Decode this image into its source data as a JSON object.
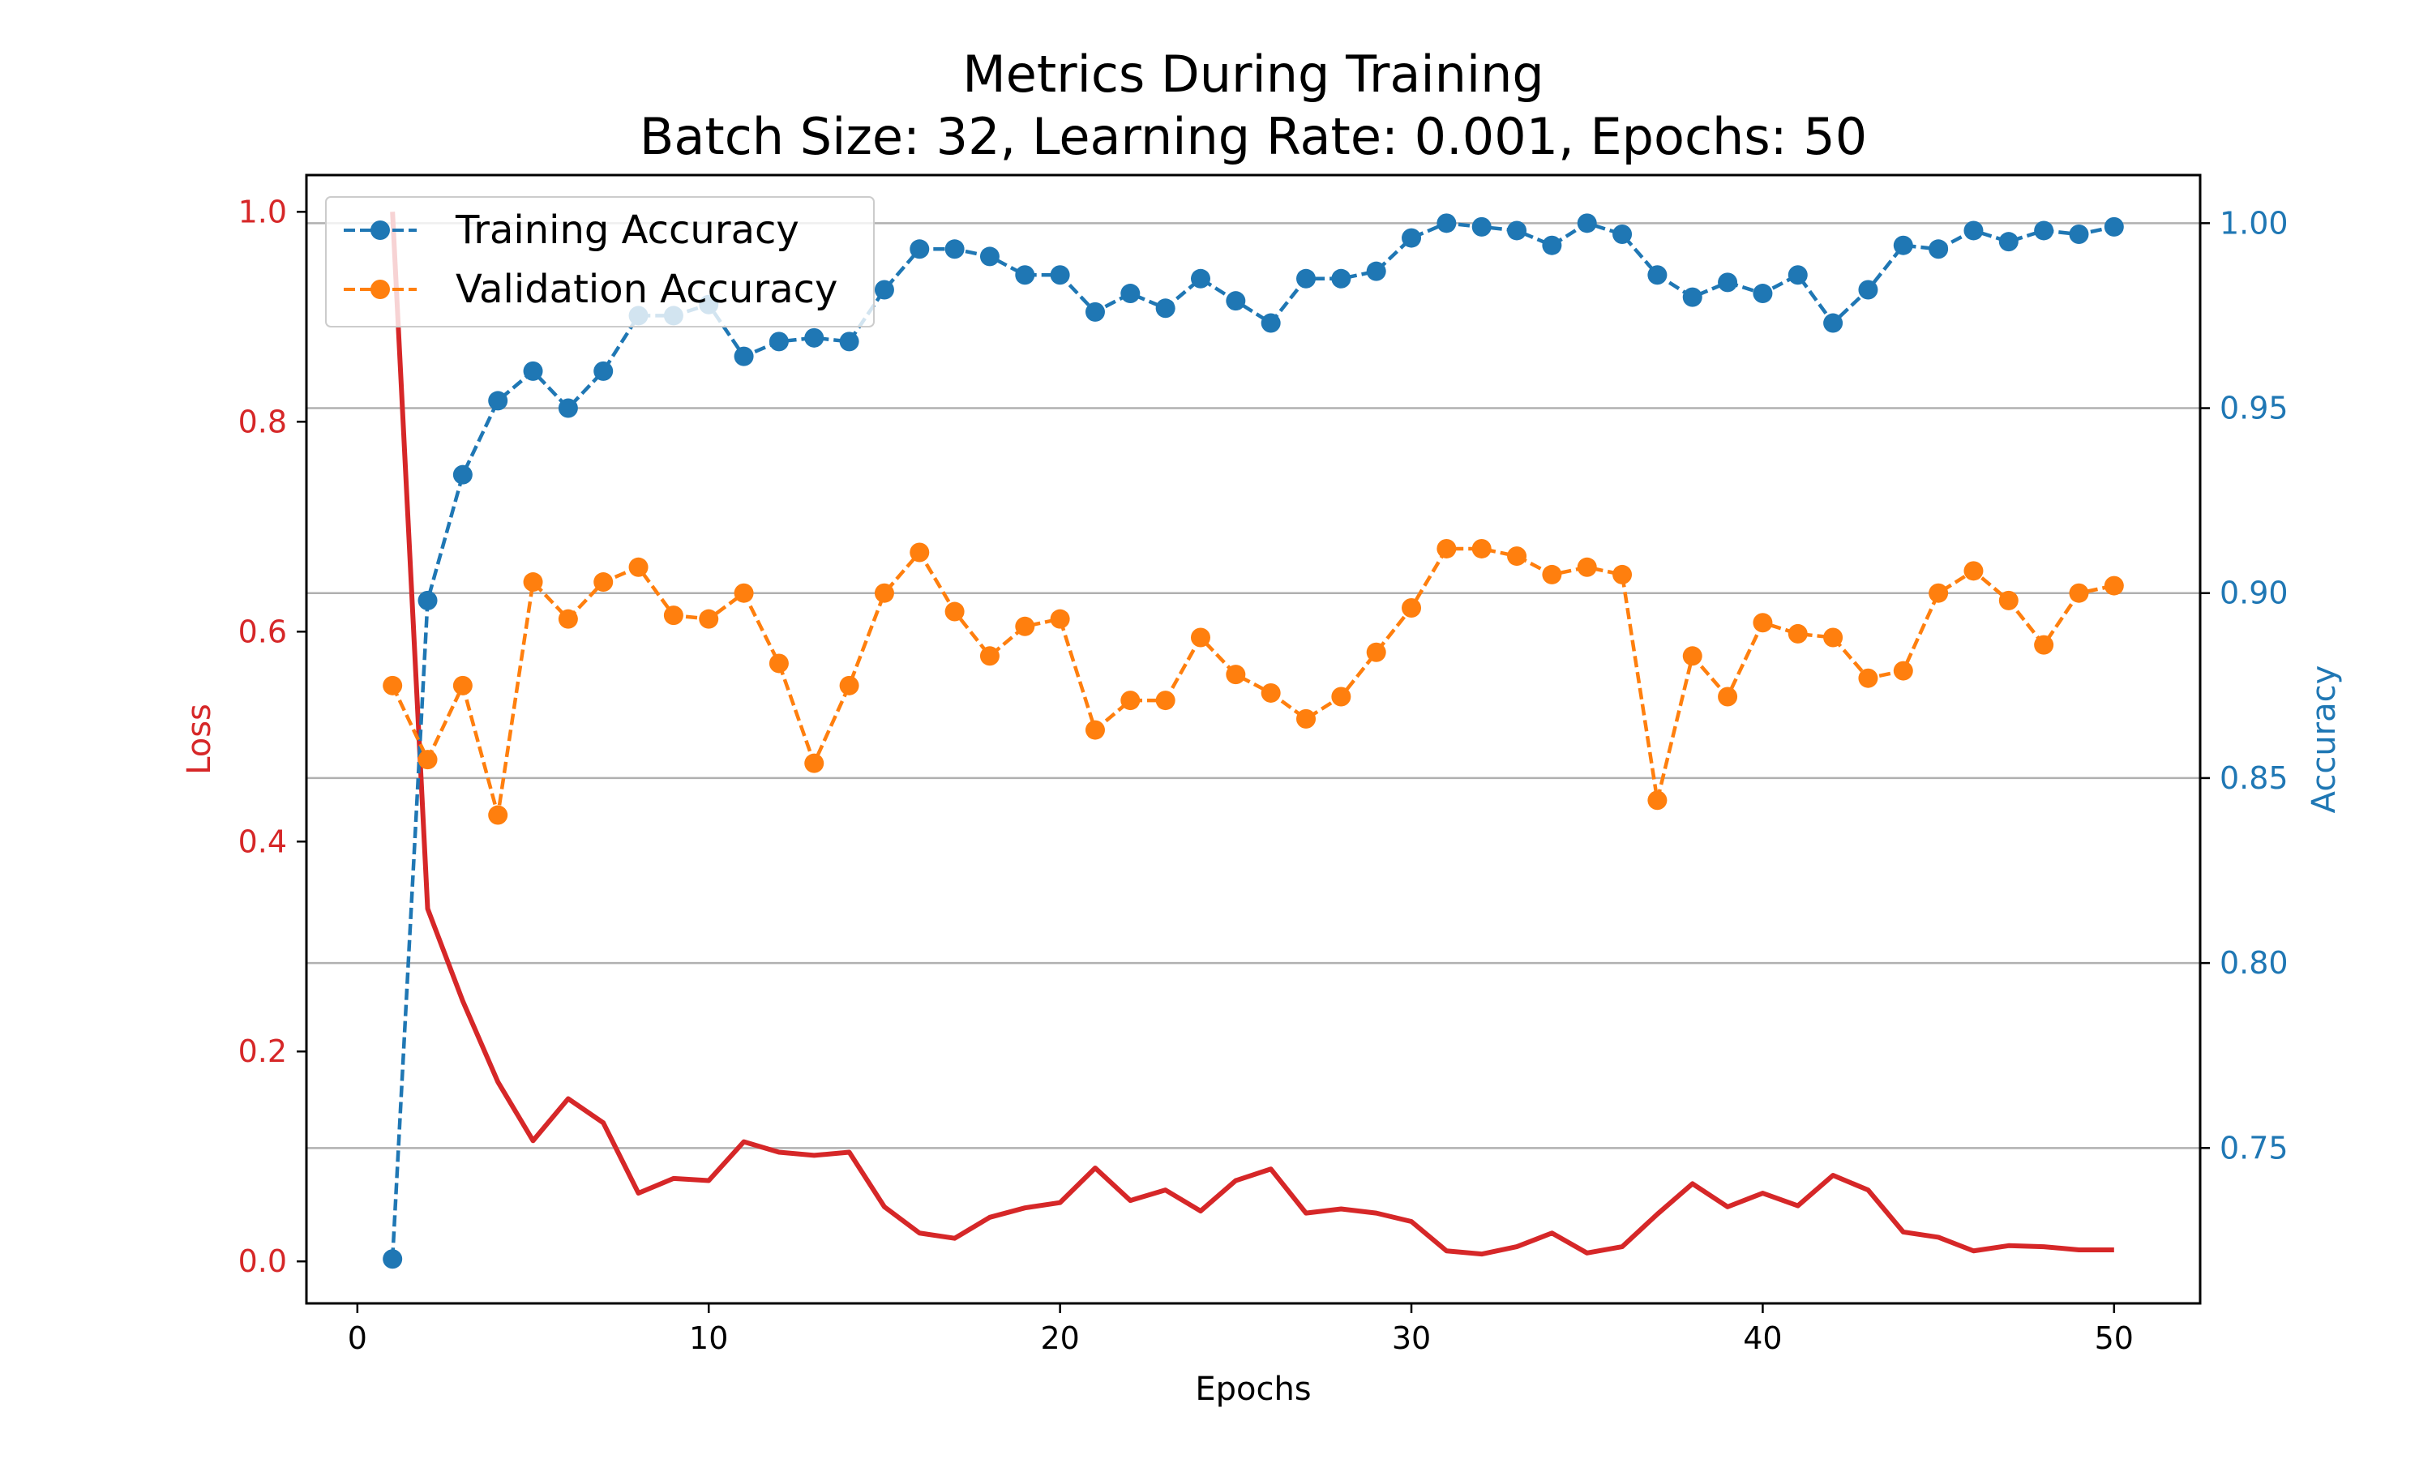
{
  "chart_data": {
    "type": "line",
    "title": "Metrics During Training",
    "subtitle": "Batch Size: 32, Learning Rate: 0.001, Epochs: 50",
    "xlabel": "Epochs",
    "ylabel_left": "Loss",
    "ylabel_right": "Accuracy",
    "x": [
      1,
      2,
      3,
      4,
      5,
      6,
      7,
      8,
      9,
      10,
      11,
      12,
      13,
      14,
      15,
      16,
      17,
      18,
      19,
      20,
      21,
      22,
      23,
      24,
      25,
      26,
      27,
      28,
      29,
      30,
      31,
      32,
      33,
      34,
      35,
      36,
      37,
      38,
      39,
      40,
      41,
      42,
      43,
      44,
      45,
      46,
      47,
      48,
      49,
      50
    ],
    "xlim": [
      -1.45,
      52.45
    ],
    "xticks": [
      0,
      10,
      20,
      30,
      40,
      50
    ],
    "xtick_labels": [
      "0",
      "10",
      "20",
      "30",
      "40",
      "50"
    ],
    "y_left_lim": [
      -0.04,
      1.035
    ],
    "y_left_ticks": [
      0.0,
      0.2,
      0.4,
      0.6,
      0.8,
      1.0
    ],
    "y_left_tick_labels": [
      "0.0",
      "0.2",
      "0.4",
      "0.6",
      "0.8",
      "1.0"
    ],
    "y_right_lim": [
      0.708,
      1.013
    ],
    "y_right_ticks": [
      0.75,
      0.8,
      0.85,
      0.9,
      0.95,
      1.0
    ],
    "y_right_tick_labels": [
      "0.75",
      "0.80",
      "0.85",
      "0.90",
      "0.95",
      "1.00"
    ],
    "grid": "horizontal on right axis",
    "legend_position": "top-left",
    "colors": {
      "loss": "#d62728",
      "training_accuracy": "#1f77b4",
      "validation_accuracy": "#ff7f0e",
      "left_axis": "#d62728",
      "right_axis": "#1f77b4",
      "grid": "#b0b0b0"
    },
    "series": [
      {
        "name": "Training Accuracy",
        "axis": "right",
        "style": "dashed-marker",
        "values": [
          0.72,
          0.898,
          0.932,
          0.952,
          0.96,
          0.95,
          0.96,
          0.975,
          0.975,
          0.978,
          0.964,
          0.968,
          0.969,
          0.968,
          0.982,
          0.993,
          0.993,
          0.991,
          0.986,
          0.986,
          0.976,
          0.981,
          0.977,
          0.985,
          0.979,
          0.973,
          0.985,
          0.985,
          0.987,
          0.996,
          1.0,
          0.999,
          0.998,
          0.994,
          1.0,
          0.997,
          0.986,
          0.98,
          0.984,
          0.981,
          0.986,
          0.973,
          0.982,
          0.994,
          0.993,
          0.998,
          0.995,
          0.998,
          0.997,
          0.999
        ]
      },
      {
        "name": "Validation Accuracy",
        "axis": "right",
        "style": "dashed-marker",
        "values": [
          0.875,
          0.855,
          0.875,
          0.84,
          0.903,
          0.893,
          0.903,
          0.907,
          0.894,
          0.893,
          0.9,
          0.881,
          0.854,
          0.875,
          0.9,
          0.911,
          0.895,
          0.883,
          0.891,
          0.893,
          0.863,
          0.871,
          0.871,
          0.888,
          0.878,
          0.873,
          0.866,
          0.872,
          0.884,
          0.896,
          0.912,
          0.912,
          0.91,
          0.905,
          0.907,
          0.905,
          0.844,
          0.883,
          0.872,
          0.892,
          0.889,
          0.888,
          0.877,
          0.879,
          0.9,
          0.906,
          0.898,
          0.886,
          0.9,
          0.902
        ]
      },
      {
        "name": "",
        "axis": "left",
        "style": "solid",
        "values": [
          1.0,
          0.336,
          0.248,
          0.171,
          0.115,
          0.155,
          0.132,
          0.065,
          0.079,
          0.077,
          0.114,
          0.104,
          0.101,
          0.104,
          0.052,
          0.027,
          0.022,
          0.042,
          0.051,
          0.056,
          0.089,
          0.058,
          0.068,
          0.048,
          0.077,
          0.088,
          0.046,
          0.05,
          0.046,
          0.038,
          0.01,
          0.007,
          0.014,
          0.027,
          0.008,
          0.014,
          0.045,
          0.074,
          0.052,
          0.065,
          0.053,
          0.082,
          0.068,
          0.028,
          0.023,
          0.01,
          0.015,
          0.014,
          0.011,
          0.011
        ]
      }
    ]
  }
}
